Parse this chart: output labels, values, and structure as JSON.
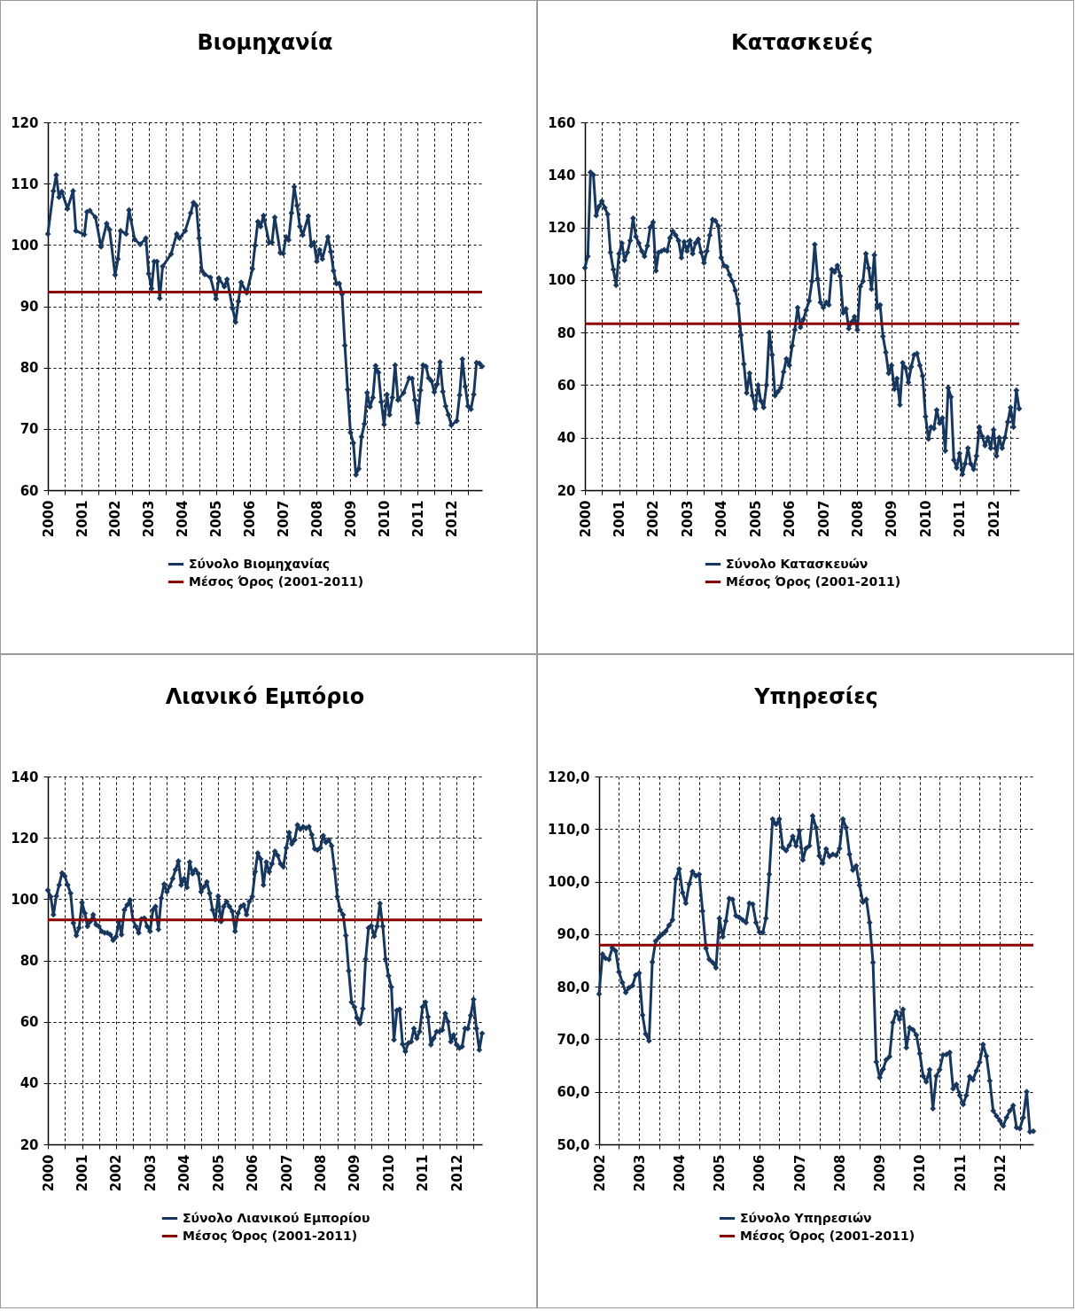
{
  "chart_data": [
    {
      "type": "line",
      "title": "Βιομηχανία",
      "xlim": [
        "2000-01",
        "2012-12"
      ],
      "ylim": [
        60,
        120
      ],
      "yticks": [
        60,
        70,
        80,
        90,
        100,
        110,
        120
      ],
      "xticks": [
        "2000",
        {
          "value": "2000-07",
          "label": null
        },
        "2001",
        {
          "value": "2001-07",
          "label": null
        },
        "2002",
        {
          "value": "2002-07",
          "label": null
        },
        "2003",
        {
          "value": "2003-07",
          "label": null
        },
        "2004",
        {
          "value": "2004-07",
          "label": null
        },
        "2005",
        {
          "value": "2005-07",
          "label": null
        },
        "2006",
        {
          "value": "2006-07",
          "label": null
        },
        "2007",
        {
          "value": "2007-07",
          "label": null
        },
        "2008",
        {
          "value": "2008-07",
          "label": null
        },
        "2009",
        {
          "value": "2009-07",
          "label": null
        },
        "2010",
        {
          "value": "2010-07",
          "label": null
        },
        "2011",
        {
          "value": "2011-07",
          "label": null
        },
        "2012",
        {
          "value": "2012-07",
          "label": null
        }
      ],
      "grid": true,
      "legend": "bottom",
      "marker": "diamond",
      "series": [
        {
          "name": "Σύνολο Βιομηχανίας",
          "color": "#17375e",
          "x": [
            "2000-01",
            "2000-03",
            "2000-04",
            "2000-05",
            "2000-06",
            "2000-08",
            "2000-10",
            "2000-11",
            "2001-02",
            "2001-03",
            "2001-04",
            "2001-06",
            "2001-08",
            "2001-10",
            "2001-11",
            "2002-01",
            "2002-02",
            "2002-03",
            "2002-05",
            "2002-06",
            "2002-08",
            "2002-10",
            "2002-12",
            "2003-01",
            "2003-02",
            "2003-03",
            "2003-04",
            "2003-05",
            "2003-06",
            "2003-09",
            "2003-11",
            "2003-12",
            "2004-02",
            "2004-04",
            "2004-05",
            "2004-06",
            "2004-07",
            "2004-08",
            "2004-09",
            "2004-11",
            "2005-01",
            "2005-02",
            "2005-04",
            "2005-05",
            "2005-07",
            "2005-08",
            "2005-09",
            "2005-10",
            "2005-12",
            "2006-02",
            "2006-03",
            "2006-04",
            "2006-05",
            "2006-06",
            "2006-08",
            "2006-09",
            "2006-10",
            "2006-12",
            "2007-01",
            "2007-02",
            "2007-03",
            "2007-04",
            "2007-05",
            "2007-06",
            "2007-07",
            "2007-08",
            "2007-10",
            "2007-11",
            "2007-12",
            "2008-01",
            "2008-02",
            "2008-03",
            "2008-05",
            "2008-06",
            "2008-07",
            "2008-08",
            "2008-09",
            "2008-10",
            "2008-11",
            "2008-12",
            "2009-01",
            "2009-02",
            "2009-03",
            "2009-04",
            "2009-05",
            "2009-06",
            "2009-07",
            "2009-08",
            "2009-09",
            "2009-10",
            "2009-11",
            "2009-12",
            "2010-01",
            "2010-02",
            "2010-03",
            "2010-04",
            "2010-05",
            "2010-06",
            "2010-08",
            "2010-10",
            "2010-11",
            "2010-12",
            "2011-01",
            "2011-02",
            "2011-03",
            "2011-04",
            "2011-05",
            "2011-06",
            "2011-07",
            "2011-08",
            "2011-09",
            "2011-10",
            "2011-11",
            "2011-12",
            "2012-01",
            "2012-03",
            "2012-04",
            "2012-05",
            "2012-06",
            "2012-07",
            "2012-08",
            "2012-09",
            "2012-10",
            "2012-11",
            "2012-12"
          ],
          "values": [
            101.8,
            108.8,
            111.4,
            107.8,
            108.7,
            105.9,
            108.8,
            102.3,
            101.7,
            105.4,
            105.6,
            104.5,
            99.7,
            103.5,
            102.5,
            95.1,
            97.7,
            102.3,
            101.8,
            105.7,
            100.9,
            100.1,
            101.1,
            95.3,
            92.9,
            97.3,
            97.3,
            91.3,
            96.5,
            98.5,
            101.8,
            101.1,
            102.3,
            105.2,
            106.9,
            106.4,
            101.1,
            95.8,
            95.2,
            94.7,
            91.2,
            94.6,
            93.2,
            94.4,
            89.6,
            87.4,
            90.8,
            93.9,
            92.2,
            96.1,
            99.9,
            103.8,
            103.0,
            104.8,
            100.4,
            100.4,
            104.5,
            98.7,
            98.6,
            101.3,
            100.8,
            105.2,
            109.5,
            106.4,
            103.0,
            101.6,
            104.7,
            99.9,
            100.4,
            97.3,
            99.2,
            97.7,
            101.3,
            98.9,
            95.8,
            93.7,
            93.7,
            92.0,
            83.6,
            76.4,
            69.4,
            67.7,
            62.5,
            63.5,
            68.7,
            70.8,
            75.9,
            73.6,
            75.1,
            80.3,
            79.2,
            74.4,
            70.7,
            75.6,
            72.3,
            75.1,
            80.4,
            74.7,
            75.9,
            78.3,
            78.2,
            74.7,
            71.0,
            76.3,
            80.4,
            80.2,
            78.3,
            77.8,
            76.0,
            77.3,
            80.9,
            76.1,
            73.7,
            72.3,
            70.6,
            71.3,
            75.5,
            81.4,
            76.9,
            73.7,
            73.2,
            75.6,
            80.8,
            80.7,
            80.2
          ]
        }
      ],
      "ref_lines": [
        {
          "axis": "y",
          "value": 92.3,
          "label": "Μέσος Όρος (2001-2011)",
          "color": "#8b0000"
        }
      ]
    },
    {
      "type": "line",
      "title": "Κατασκευές",
      "xlim": [
        "2000-01",
        "2012-10"
      ],
      "ylim": [
        20,
        160
      ],
      "yticks": [
        20,
        40,
        60,
        80,
        100,
        120,
        140,
        160
      ],
      "xticks": [
        "2000",
        {
          "value": "2000-07",
          "label": null
        },
        "2001",
        {
          "value": "2001-07",
          "label": null
        },
        "2002",
        {
          "value": "2002-07",
          "label": null
        },
        "2003",
        {
          "value": "2003-07",
          "label": null
        },
        "2004",
        {
          "value": "2004-07",
          "label": null
        },
        "2005",
        {
          "value": "2005-07",
          "label": null
        },
        "2006",
        {
          "value": "2006-07",
          "label": null
        },
        "2007",
        {
          "value": "2007-07",
          "label": null
        },
        "2008",
        {
          "value": "2008-07",
          "label": null
        },
        "2009",
        {
          "value": "2009-07",
          "label": null
        },
        "2010",
        {
          "value": "2010-07",
          "label": null
        },
        "2011",
        {
          "value": "2011-07",
          "label": null
        },
        "2012",
        {
          "value": "2012-07",
          "label": null
        }
      ],
      "grid": true,
      "legend": "bottom",
      "marker": "diamond",
      "x": [
        "2000-01",
        "2000-02",
        "2000-03",
        "2000-04",
        "2000-05",
        "2000-06",
        "2000-07",
        "2000-08",
        "2000-09",
        "2000-10",
        "2000-11",
        "2000-12",
        "2001-01",
        "2001-02",
        "2001-03",
        "2001-04",
        "2001-05",
        "2001-06",
        "2001-07",
        "2001-08",
        "2001-09",
        "2001-10",
        "2001-11",
        "2001-12",
        "2002-01",
        "2002-02",
        "2002-03",
        "2002-04",
        "2002-05",
        "2002-06",
        "2002-07",
        "2002-08",
        "2002-09",
        "2002-10",
        "2002-11",
        "2002-12",
        "2003-01",
        "2003-02",
        "2003-03",
        "2003-04",
        "2003-05",
        "2003-06",
        "2003-07",
        "2003-08",
        "2003-09",
        "2003-10",
        "2003-11",
        "2003-12",
        "2004-01",
        "2004-02",
        "2004-03",
        "2004-04",
        "2004-05",
        "2004-06",
        "2004-07",
        "2004-08",
        "2004-09",
        "2004-10",
        "2004-11",
        "2004-12",
        "2005-01",
        "2005-02",
        "2005-03",
        "2005-04",
        "2005-05",
        "2005-06",
        "2005-07",
        "2005-08",
        "2005-09",
        "2005-10",
        "2005-11",
        "2005-12",
        "2006-01",
        "2006-02",
        "2006-03",
        "2006-04",
        "2006-05",
        "2006-06",
        "2006-07",
        "2006-08",
        "2006-09",
        "2006-10",
        "2006-11",
        "2006-12",
        "2007-01",
        "2007-02",
        "2007-03",
        "2007-04",
        "2007-05",
        "2007-06",
        "2007-07",
        "2007-08",
        "2007-09",
        "2007-10",
        "2007-11",
        "2007-12",
        "2008-01",
        "2008-02",
        "2008-03",
        "2008-04",
        "2008-05",
        "2008-06",
        "2008-07",
        "2008-08",
        "2008-09",
        "2008-10",
        "2008-11",
        "2008-12",
        "2009-01",
        "2009-02",
        "2009-03",
        "2009-04",
        "2009-05",
        "2009-06",
        "2009-07",
        "2009-08",
        "2009-09",
        "2009-10",
        "2009-11",
        "2009-12",
        "2010-01",
        "2010-02",
        "2010-03",
        "2010-04",
        "2010-05",
        "2010-06",
        "2010-07",
        "2010-08",
        "2010-09",
        "2010-10",
        "2010-11",
        "2010-12",
        "2011-01",
        "2011-02",
        "2011-03",
        "2011-04",
        "2011-05",
        "2011-06",
        "2011-07",
        "2011-08",
        "2011-09",
        "2011-10",
        "2011-11",
        "2011-12",
        "2012-01",
        "2012-02",
        "2012-03",
        "2012-04",
        "2012-05",
        "2012-06",
        "2012-07",
        "2012-08",
        "2012-09",
        "2012-10"
      ],
      "series": [
        {
          "name": "Σύνολο Κατασκευών",
          "color": "#17375e",
          "values": [
            104.6,
            109,
            141,
            140,
            124.5,
            128,
            130,
            127.5,
            125,
            110.5,
            104,
            98,
            110,
            114,
            107.5,
            110.5,
            115,
            123.5,
            116.5,
            114,
            111,
            109,
            113,
            120,
            122,
            103.5,
            110.5,
            111,
            111.5,
            111,
            116,
            118.5,
            117,
            115,
            108.5,
            114.5,
            111,
            115,
            110,
            114,
            115.5,
            110.5,
            106.5,
            111,
            117,
            123,
            122.5,
            120.5,
            108.5,
            105.5,
            105,
            102,
            99.5,
            96,
            91,
            79,
            68,
            57,
            64.5,
            56,
            51,
            60,
            54,
            51.5,
            60,
            80,
            71.5,
            56,
            57.5,
            59,
            65,
            70,
            67.5,
            75,
            81,
            89.5,
            82,
            85,
            88.5,
            92,
            99.5,
            113.5,
            100.5,
            91.5,
            89.5,
            91.5,
            90.5,
            104,
            103,
            105.5,
            101.5,
            87.5,
            89,
            81.5,
            84,
            86,
            81,
            97.5,
            99.5,
            110,
            104.5,
            96.5,
            109.5,
            89.5,
            90.5,
            78.5,
            72.5,
            64.5,
            67.5,
            58.5,
            62.5,
            52.5,
            68.5,
            66.5,
            61,
            67,
            71.5,
            72,
            67.5,
            63.5,
            48,
            39.5,
            44,
            43.5,
            50.5,
            45.5,
            47.5,
            35,
            59,
            55.5,
            31.5,
            28.5,
            34,
            26,
            30,
            36,
            30,
            28,
            33,
            44,
            40.5,
            37,
            40,
            36,
            43,
            33,
            40,
            36,
            40,
            46,
            51.5,
            44,
            58,
            51
          ]
        }
      ],
      "ref_lines": [
        {
          "axis": "y",
          "value": 83.3,
          "label": "Μέσος Όρος (2001-2011)",
          "color": "#8b0000"
        }
      ]
    },
    {
      "type": "line",
      "title": "Λιανικό Εμπόριο",
      "xlim": [
        "2000-01",
        "2012-10"
      ],
      "ylim": [
        20,
        140
      ],
      "yticks": [
        20,
        40,
        60,
        80,
        100,
        120,
        140
      ],
      "xticks": [
        "2000",
        {
          "value": "2000-07",
          "label": null
        },
        "2001",
        {
          "value": "2001-07",
          "label": null
        },
        "2002",
        {
          "value": "2002-07",
          "label": null
        },
        "2003",
        {
          "value": "2003-07",
          "label": null
        },
        "2004",
        {
          "value": "2004-07",
          "label": null
        },
        "2005",
        {
          "value": "2005-07",
          "label": null
        },
        "2006",
        {
          "value": "2006-07",
          "label": null
        },
        "2007",
        {
          "value": "2007-07",
          "label": null
        },
        "2008",
        {
          "value": "2008-07",
          "label": null
        },
        "2009",
        {
          "value": "2009-07",
          "label": null
        },
        "2010",
        {
          "value": "2010-07",
          "label": null
        },
        "2011",
        {
          "value": "2011-07",
          "label": null
        },
        "2012",
        {
          "value": "2012-07",
          "label": null
        }
      ],
      "grid": true,
      "legend": "bottom",
      "marker": "diamond",
      "x": [
        "2000-01",
        "2000-02",
        "2000-03",
        "2000-04",
        "2000-05",
        "2000-06",
        "2000-07",
        "2000-08",
        "2000-09",
        "2000-10",
        "2000-11",
        "2000-12",
        "2001-01",
        "2001-02",
        "2001-03",
        "2001-04",
        "2001-05",
        "2001-06",
        "2001-07",
        "2001-08",
        "2001-09",
        "2001-10",
        "2001-11",
        "2001-12",
        "2002-01",
        "2002-02",
        "2002-03",
        "2002-04",
        "2002-05",
        "2002-06",
        "2002-07",
        "2002-08",
        "2002-09",
        "2002-10",
        "2002-11",
        "2002-12",
        "2003-01",
        "2003-02",
        "2003-03",
        "2003-04",
        "2003-05",
        "2003-06",
        "2003-07",
        "2003-08",
        "2003-09",
        "2003-10",
        "2003-11",
        "2003-12",
        "2004-01",
        "2004-02",
        "2004-03",
        "2004-04",
        "2004-05",
        "2004-06",
        "2004-07",
        "2004-08",
        "2004-09",
        "2004-10",
        "2004-11",
        "2004-12",
        "2005-01",
        "2005-02",
        "2005-03",
        "2005-04",
        "2005-05",
        "2005-06",
        "2005-07",
        "2005-08",
        "2005-09",
        "2005-10",
        "2005-11",
        "2005-12",
        "2006-01",
        "2006-02",
        "2006-03",
        "2006-04",
        "2006-05",
        "2006-06",
        "2006-07",
        "2006-08",
        "2006-09",
        "2006-10",
        "2006-11",
        "2006-12",
        "2007-01",
        "2007-02",
        "2007-03",
        "2007-04",
        "2007-05",
        "2007-06",
        "2007-07",
        "2007-08",
        "2007-09",
        "2007-10",
        "2007-11",
        "2007-12",
        "2008-01",
        "2008-02",
        "2008-03",
        "2008-04",
        "2008-05",
        "2008-06",
        "2008-07",
        "2008-08",
        "2008-09",
        "2008-10",
        "2008-11",
        "2008-12",
        "2009-01",
        "2009-02",
        "2009-03",
        "2009-04",
        "2009-05",
        "2009-06",
        "2009-07",
        "2009-08",
        "2009-09",
        "2009-10",
        "2009-11",
        "2009-12",
        "2010-01",
        "2010-02",
        "2010-03",
        "2010-04",
        "2010-05",
        "2010-06",
        "2010-07",
        "2010-08",
        "2010-09",
        "2010-10",
        "2010-11",
        "2010-12",
        "2011-01",
        "2011-02",
        "2011-03",
        "2011-04",
        "2011-05",
        "2011-06",
        "2011-07",
        "2011-08",
        "2011-09",
        "2011-10",
        "2011-11",
        "2011-12",
        "2012-01",
        "2012-02",
        "2012-03",
        "2012-04",
        "2012-05",
        "2012-06",
        "2012-07",
        "2012-08",
        "2012-09",
        "2012-10"
      ],
      "series": [
        {
          "name": "Σύνολο Λιανικού Εμπορίου",
          "color": "#17375e",
          "values": [
            102.9,
            100.8,
            94.9,
            101.0,
            104.6,
            108.5,
            107.5,
            104.6,
            101.9,
            92.2,
            88.1,
            90.6,
            98.9,
            95.4,
            91.1,
            92.7,
            94.9,
            91.7,
            91.1,
            89.5,
            89.0,
            89.0,
            88.4,
            86.6,
            87.7,
            92.7,
            88.4,
            96.5,
            98.1,
            99.7,
            93.3,
            91.1,
            89.0,
            93.5,
            93.8,
            91.1,
            89.5,
            96.5,
            97.6,
            90.1,
            100.3,
            104.9,
            102.4,
            104.2,
            106.7,
            109.6,
            112.4,
            104.6,
            106.7,
            103.8,
            112.1,
            108.3,
            109.6,
            108.3,
            102.4,
            104.0,
            105.6,
            101.9,
            96.5,
            93.3,
            101.0,
            92.7,
            97.6,
            99.2,
            97.6,
            96.0,
            89.5,
            95.4,
            97.6,
            98.1,
            94.9,
            99.2,
            100.8,
            108.9,
            115.0,
            113.1,
            104.6,
            112.1,
            108.9,
            111.5,
            115.6,
            114.2,
            111.5,
            110.5,
            116.7,
            121.7,
            118.0,
            119.3,
            124.2,
            122.8,
            123.6,
            123.1,
            123.6,
            121.0,
            116.4,
            116.0,
            116.7,
            120.7,
            118.5,
            119.3,
            117.4,
            109.9,
            100.8,
            96.5,
            94.9,
            88.1,
            76.6,
            66.4,
            64.8,
            61.1,
            59.4,
            64.3,
            80.4,
            90.6,
            91.3,
            87.9,
            91.1,
            98.6,
            91.1,
            80.4,
            75.0,
            71.3,
            54.1,
            63.7,
            64.1,
            52.7,
            50.3,
            53.0,
            53.5,
            57.8,
            54.6,
            56.8,
            64.8,
            66.4,
            61.6,
            52.5,
            54.6,
            56.8,
            56.8,
            57.3,
            62.7,
            60.0,
            53.5,
            55.7,
            52.5,
            51.4,
            51.9,
            57.8,
            57.8,
            62.1,
            67.3,
            57.8,
            50.8,
            56.2
          ]
        }
      ],
      "ref_lines": [
        {
          "axis": "y",
          "value": 93.2,
          "label": "Μέσος Όρος (2001-2011)",
          "color": "#8b0000"
        }
      ]
    },
    {
      "type": "line",
      "title": "Υπηρεσίες",
      "xlim": [
        "2002-01",
        "2012-11"
      ],
      "ylim": [
        50,
        120
      ],
      "yticks": [
        {
          "value": 50,
          "label": "50,0"
        },
        {
          "value": 60,
          "label": "60,0"
        },
        {
          "value": 70,
          "label": "70,0"
        },
        {
          "value": 80,
          "label": "80,0"
        },
        {
          "value": 90,
          "label": "90,0"
        },
        {
          "value": 100,
          "label": "100,0"
        },
        {
          "value": 110,
          "label": "110,0"
        },
        {
          "value": 120,
          "label": "120,0"
        }
      ],
      "xticks": [
        "2002",
        {
          "value": "2002-07",
          "label": null
        },
        "2003",
        {
          "value": "2003-07",
          "label": null
        },
        "2004",
        {
          "value": "2004-07",
          "label": null
        },
        "2005",
        {
          "value": "2005-07",
          "label": null
        },
        "2006",
        {
          "value": "2006-07",
          "label": null
        },
        "2007",
        {
          "value": "2007-07",
          "label": null
        },
        "2008",
        {
          "value": "2008-07",
          "label": null
        },
        "2009",
        {
          "value": "2009-07",
          "label": null
        },
        "2010",
        {
          "value": "2010-07",
          "label": null
        },
        "2011",
        {
          "value": "2011-07",
          "label": null
        },
        "2012",
        {
          "value": "2012-07",
          "label": null
        }
      ],
      "grid": true,
      "legend": "bottom",
      "marker": "diamond",
      "x": [
        "2002-01",
        "2002-02",
        "2002-03",
        "2002-04",
        "2002-05",
        "2002-06",
        "2002-07",
        "2002-08",
        "2002-09",
        "2002-10",
        "2002-11",
        "2002-12",
        "2003-01",
        "2003-02",
        "2003-03",
        "2003-04",
        "2003-05",
        "2003-06",
        "2003-07",
        "2003-08",
        "2003-09",
        "2003-10",
        "2003-11",
        "2003-12",
        "2004-01",
        "2004-02",
        "2004-03",
        "2004-04",
        "2004-05",
        "2004-06",
        "2004-07",
        "2004-08",
        "2004-09",
        "2004-10",
        "2004-11",
        "2004-12",
        "2005-01",
        "2005-02",
        "2005-03",
        "2005-04",
        "2005-05",
        "2005-06",
        "2005-07",
        "2005-08",
        "2005-09",
        "2005-10",
        "2005-11",
        "2005-12",
        "2006-01",
        "2006-02",
        "2006-03",
        "2006-04",
        "2006-05",
        "2006-06",
        "2006-07",
        "2006-08",
        "2006-09",
        "2006-10",
        "2006-11",
        "2006-12",
        "2007-01",
        "2007-02",
        "2007-03",
        "2007-04",
        "2007-05",
        "2007-06",
        "2007-07",
        "2007-08",
        "2007-09",
        "2007-10",
        "2007-11",
        "2007-12",
        "2008-01",
        "2008-02",
        "2008-03",
        "2008-04",
        "2008-05",
        "2008-06",
        "2008-07",
        "2008-08",
        "2008-09",
        "2008-10",
        "2008-11",
        "2008-12",
        "2009-01",
        "2009-02",
        "2009-03",
        "2009-04",
        "2009-05",
        "2009-06",
        "2009-07",
        "2009-08",
        "2009-09",
        "2009-10",
        "2009-11",
        "2009-12",
        "2010-01",
        "2010-02",
        "2010-03",
        "2010-04",
        "2010-05",
        "2010-06",
        "2010-07",
        "2010-08",
        "2010-09",
        "2010-10",
        "2010-11",
        "2010-12",
        "2011-01",
        "2011-02",
        "2011-03",
        "2011-04",
        "2011-05",
        "2011-06",
        "2011-07",
        "2011-08",
        "2011-09",
        "2011-10",
        "2011-11",
        "2011-12",
        "2012-01",
        "2012-02",
        "2012-03",
        "2012-04",
        "2012-05",
        "2012-06",
        "2012-07",
        "2012-08",
        "2012-09",
        "2012-10",
        "2012-11"
      ],
      "series": [
        {
          "name": "Σύνολο Υπηρεσιών",
          "color": "#17375e",
          "values": [
            78.6,
            86.2,
            85.4,
            85.2,
            87.4,
            86.8,
            82.8,
            80.8,
            78.9,
            79.8,
            80.2,
            82.2,
            82.6,
            74.6,
            71.0,
            69.7,
            84.7,
            88.7,
            89.4,
            90.0,
            90.6,
            91.7,
            92.7,
            100.5,
            102.4,
            97.9,
            95.9,
            99.5,
            101.9,
            101.1,
            101.4,
            94.4,
            87.3,
            85.2,
            84.6,
            83.6,
            93.0,
            89.5,
            92.5,
            96.8,
            96.6,
            93.5,
            93.2,
            92.7,
            92.2,
            95.9,
            95.7,
            92.2,
            90.4,
            90.3,
            93.0,
            101.4,
            111.9,
            110.9,
            111.9,
            106.5,
            105.9,
            106.9,
            108.6,
            106.8,
            109.7,
            104.1,
            106.3,
            106.8,
            112.5,
            110.3,
            104.9,
            103.5,
            106.2,
            104.8,
            105.2,
            105.0,
            106.3,
            111.9,
            110.3,
            105.2,
            102.2,
            103.0,
            99.3,
            96.1,
            96.6,
            92.2,
            84.6,
            65.7,
            62.7,
            64.3,
            66.1,
            66.7,
            73.2,
            75.2,
            73.8,
            75.7,
            68.4,
            72.2,
            71.8,
            70.8,
            67.3,
            63.0,
            61.9,
            64.2,
            56.8,
            63.0,
            64.2,
            67.0,
            67.1,
            67.5,
            60.6,
            61.4,
            59.3,
            57.6,
            59.3,
            62.9,
            62.3,
            64.0,
            65.6,
            69.0,
            66.8,
            62.1,
            56.4,
            55.4,
            54.5,
            53.5,
            55.1,
            56.4,
            57.4,
            53.2,
            53.0,
            55.1,
            60.0,
            52.4,
            52.5
          ]
        }
      ],
      "ref_lines": [
        {
          "axis": "y",
          "value": 87.9,
          "label": "Μέσος Όρος (2001-2011)",
          "color": "#8b0000"
        }
      ]
    }
  ]
}
